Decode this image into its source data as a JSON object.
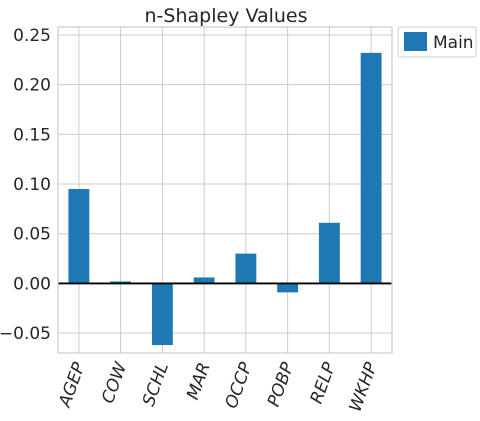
{
  "chart_data": {
    "type": "bar",
    "title": "n-Shapley Values",
    "xlabel": "",
    "ylabel": "",
    "categories": [
      "AGEP",
      "COW",
      "SCHL",
      "MAR",
      "OCCP",
      "POBP",
      "RELP",
      "WKHP"
    ],
    "series": [
      {
        "name": "Main",
        "values": [
          0.095,
          0.002,
          -0.062,
          0.006,
          0.03,
          -0.009,
          0.061,
          0.232
        ],
        "color": "#1f77b4"
      }
    ],
    "ylim": [
      -0.07,
      0.258
    ],
    "yticks": [
      -0.05,
      0.0,
      0.05,
      0.1,
      0.15,
      0.2,
      0.25
    ],
    "ytick_labels": [
      "−0.05",
      "0.00",
      "0.05",
      "0.10",
      "0.15",
      "0.20",
      "0.25"
    ],
    "grid": true,
    "zero_line": true,
    "legend": {
      "position": "outside-top-right",
      "entries": [
        "Main"
      ]
    },
    "x_tick_rotation": "70deg"
  }
}
